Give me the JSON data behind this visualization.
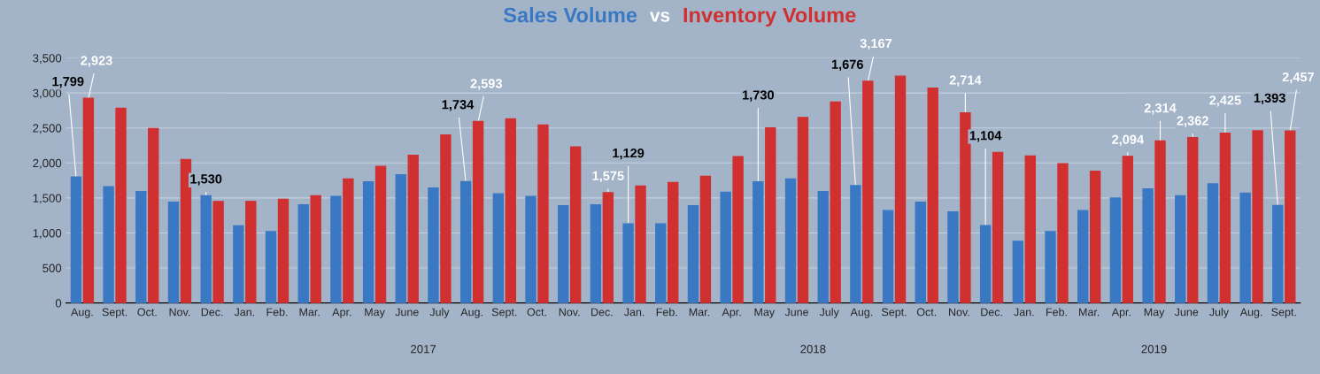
{
  "chart_data": {
    "type": "bar",
    "title": "vs",
    "categories": [
      "Aug.",
      "Sept.",
      "Oct.",
      "Nov.",
      "Dec.",
      "Jan.",
      "Feb.",
      "Mar.",
      "Apr.",
      "May",
      "June",
      "July",
      "Aug.",
      "Sept.",
      "Oct.",
      "Nov.",
      "Dec.",
      "Jan.",
      "Feb.",
      "Mar.",
      "Apr.",
      "May",
      "June",
      "July",
      "Aug.",
      "Sept.",
      "Oct.",
      "Nov.",
      "Dec.",
      "Jan.",
      "Feb.",
      "Mar.",
      "Apr.",
      "May",
      "June",
      "July",
      "Aug.",
      "Sept."
    ],
    "series": [
      {
        "name": "Sales Volume",
        "color": "#3a78c4",
        "values": [
          1799,
          1660,
          1590,
          1440,
          1530,
          1100,
          1020,
          1400,
          1520,
          1730,
          1830,
          1640,
          1734,
          1560,
          1520,
          1390,
          1400,
          1129,
          1130,
          1390,
          1580,
          1730,
          1770,
          1590,
          1676,
          1320,
          1440,
          1300,
          1104,
          880,
          1020,
          1320,
          1500,
          1630,
          1530,
          1700,
          1570,
          1393
        ],
        "value_labels": [
          "1,799",
          null,
          null,
          null,
          "1,530",
          null,
          null,
          null,
          null,
          null,
          null,
          null,
          "1,734",
          null,
          null,
          null,
          null,
          "1,129",
          null,
          null,
          null,
          "1,730",
          null,
          null,
          "1,676",
          null,
          null,
          null,
          "1,104",
          null,
          null,
          null,
          null,
          null,
          null,
          null,
          null,
          "1,393"
        ]
      },
      {
        "name": "Inventory Volume",
        "color": "#d03030",
        "values": [
          2923,
          2780,
          2490,
          2050,
          1450,
          1450,
          1480,
          1530,
          1770,
          1950,
          2110,
          2400,
          2593,
          2630,
          2540,
          2230,
          1575,
          1670,
          1720,
          1810,
          2090,
          2500,
          2650,
          2870,
          3167,
          3240,
          3070,
          2714,
          2150,
          2100,
          1990,
          1880,
          2094,
          2314,
          2362,
          2425,
          2460,
          2457
        ],
        "value_labels": [
          "2,923",
          null,
          null,
          null,
          null,
          null,
          null,
          null,
          null,
          null,
          null,
          null,
          "2,593",
          null,
          null,
          null,
          "1,575",
          null,
          null,
          null,
          null,
          null,
          null,
          null,
          "3,167",
          null,
          null,
          "2,714",
          null,
          null,
          null,
          null,
          "2,094",
          "2,314",
          "2,362",
          "2,425",
          null,
          "2,457"
        ]
      }
    ],
    "annotations": [
      "2017",
      "2018",
      "2019"
    ],
    "ylim": [
      0,
      3500
    ],
    "yticks": [
      0,
      500,
      {
        "value": 1000,
        "label": "1,000"
      },
      {
        "value": 1500,
        "label": "1,500"
      },
      {
        "value": 2000,
        "label": "2,000"
      },
      {
        "value": 2500,
        "label": "2,500"
      },
      {
        "value": 3000,
        "label": "3,000"
      },
      {
        "value": 3500,
        "label": "3,500"
      }
    ],
    "grid": "y"
  }
}
